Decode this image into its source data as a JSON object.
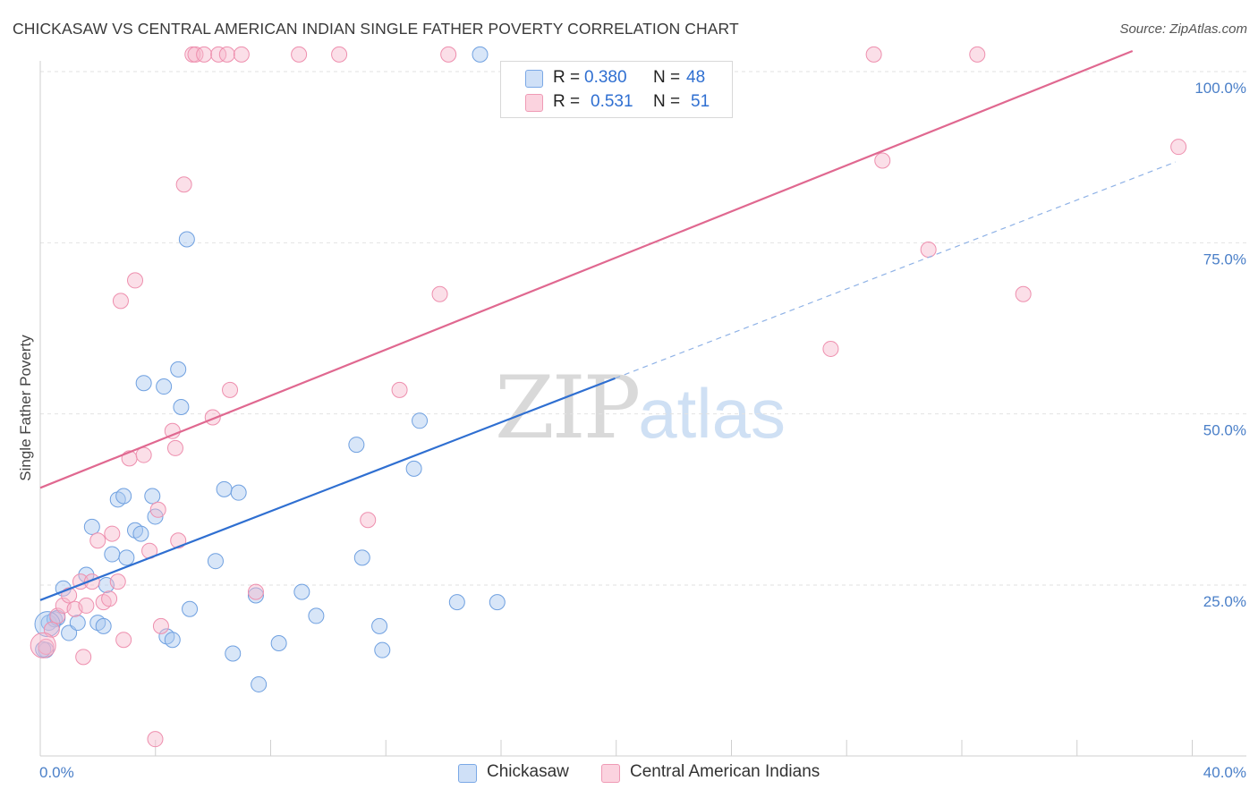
{
  "title": "CHICKASAW VS CENTRAL AMERICAN INDIAN SINGLE FATHER POVERTY CORRELATION CHART",
  "source": "Source: ZipAtlas.com",
  "watermark": {
    "zip": "ZIP",
    "atlas": "atlas"
  },
  "legend": {
    "rows": [
      {
        "r_label": "R =",
        "r_value": "0.380",
        "n_label": "N =",
        "n_value": "48",
        "color": "#a9c8f0"
      },
      {
        "r_label": "R =",
        "r_value": "0.531",
        "n_label": "N =",
        "n_value": "51",
        "color": "#f7b8cb"
      }
    ]
  },
  "bottom_legend": [
    {
      "label": "Chickasaw",
      "color": "#a9c8f0"
    },
    {
      "label": "Central American Indians",
      "color": "#f7b8cb"
    }
  ],
  "chart_data": {
    "type": "scatter",
    "title": "CHICKASAW VS CENTRAL AMERICAN INDIAN SINGLE FATHER POVERTY CORRELATION CHART",
    "xlabel": "",
    "ylabel": "Single Father Poverty",
    "xlim": [
      0,
      40
    ],
    "ylim": [
      0,
      105
    ],
    "x_tick_labels": [
      {
        "value": 0,
        "label": "0.0%"
      },
      {
        "value": 40,
        "label": "40.0%"
      }
    ],
    "y_tick_labels": [
      {
        "value": 25,
        "label": "25.0%"
      },
      {
        "value": 50,
        "label": "50.0%"
      },
      {
        "value": 75,
        "label": "75.0%"
      },
      {
        "value": 100,
        "label": "100.0%"
      }
    ],
    "grid": true,
    "series": [
      {
        "name": "Chickasaw",
        "color": "#6fa0e0",
        "fill": "#a9c8f0",
        "trend": {
          "x": [
            0,
            20
          ],
          "y": [
            22.8,
            55.2
          ],
          "dash_extension": {
            "x": [
              20,
              39.5
            ],
            "y": [
              55.2,
              86.8
            ]
          },
          "color": "#2f6fd1"
        },
        "points": [
          [
            0.2,
            15.5
          ],
          [
            0.3,
            19.5
          ],
          [
            0.5,
            20
          ],
          [
            0.6,
            20.2
          ],
          [
            0.8,
            24.5
          ],
          [
            1.0,
            18
          ],
          [
            1.3,
            19.5
          ],
          [
            1.6,
            26.5
          ],
          [
            1.8,
            33.5
          ],
          [
            2.0,
            19.5
          ],
          [
            2.2,
            19
          ],
          [
            2.3,
            25
          ],
          [
            2.5,
            29.5
          ],
          [
            2.7,
            37.5
          ],
          [
            2.9,
            38
          ],
          [
            3.0,
            29
          ],
          [
            3.3,
            33
          ],
          [
            3.5,
            32.5
          ],
          [
            3.6,
            54.5
          ],
          [
            3.9,
            38
          ],
          [
            4.0,
            35
          ],
          [
            4.3,
            54
          ],
          [
            4.4,
            17.5
          ],
          [
            4.6,
            17
          ],
          [
            4.8,
            56.5
          ],
          [
            4.9,
            51
          ],
          [
            5.1,
            75.5
          ],
          [
            5.2,
            21.5
          ],
          [
            6.1,
            28.5
          ],
          [
            6.4,
            39
          ],
          [
            6.7,
            15
          ],
          [
            6.9,
            38.5
          ],
          [
            7.5,
            23.5
          ],
          [
            7.6,
            10.5
          ],
          [
            8.3,
            16.5
          ],
          [
            9.1,
            24
          ],
          [
            9.6,
            20.5
          ],
          [
            11.0,
            45.5
          ],
          [
            11.2,
            29
          ],
          [
            11.8,
            19
          ],
          [
            11.9,
            15.5
          ],
          [
            13.0,
            42
          ],
          [
            13.2,
            49
          ],
          [
            14.5,
            22.5
          ],
          [
            15.3,
            102.5
          ],
          [
            15.9,
            22.5
          ],
          [
            0.1,
            15.6
          ],
          [
            0.25,
            19.3
          ]
        ]
      },
      {
        "name": "Central American Indians",
        "color": "#ee8fae",
        "fill": "#f7b8cb",
        "trend": {
          "x": [
            0,
            38
          ],
          "y": [
            39.2,
            103
          ],
          "color": "#e06890"
        },
        "points": [
          [
            0.2,
            16
          ],
          [
            0.4,
            18.5
          ],
          [
            0.6,
            20.5
          ],
          [
            0.8,
            22
          ],
          [
            1.0,
            23.5
          ],
          [
            1.2,
            21.5
          ],
          [
            1.4,
            25.5
          ],
          [
            1.5,
            14.5
          ],
          [
            1.6,
            22
          ],
          [
            1.8,
            25.5
          ],
          [
            2.0,
            31.5
          ],
          [
            2.2,
            22.5
          ],
          [
            2.4,
            23
          ],
          [
            2.5,
            32.5
          ],
          [
            2.7,
            25.5
          ],
          [
            2.8,
            66.5
          ],
          [
            2.9,
            17
          ],
          [
            3.1,
            43.5
          ],
          [
            3.3,
            69.5
          ],
          [
            3.6,
            44
          ],
          [
            3.8,
            30
          ],
          [
            4.0,
            2.5
          ],
          [
            4.1,
            36
          ],
          [
            4.2,
            19
          ],
          [
            4.6,
            47.5
          ],
          [
            4.7,
            45
          ],
          [
            4.8,
            31.5
          ],
          [
            5.0,
            83.5
          ],
          [
            5.3,
            102.5
          ],
          [
            5.4,
            102.5
          ],
          [
            5.7,
            102.5
          ],
          [
            6.0,
            49.5
          ],
          [
            6.2,
            102.5
          ],
          [
            6.5,
            102.5
          ],
          [
            6.6,
            53.5
          ],
          [
            7.0,
            102.5
          ],
          [
            7.5,
            24
          ],
          [
            9.0,
            102.5
          ],
          [
            10.4,
            102.5
          ],
          [
            11.4,
            34.5
          ],
          [
            12.5,
            53.5
          ],
          [
            13.9,
            67.5
          ],
          [
            14.2,
            102.5
          ],
          [
            27.5,
            59.5
          ],
          [
            29.0,
            102.5
          ],
          [
            29.3,
            87
          ],
          [
            30.9,
            74
          ],
          [
            32.6,
            102.5
          ],
          [
            34.2,
            67.5
          ],
          [
            39.6,
            89
          ],
          [
            0.1,
            16.2
          ]
        ]
      }
    ]
  }
}
